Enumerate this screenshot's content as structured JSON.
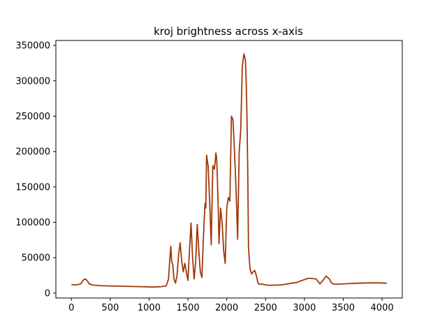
{
  "chart_data": {
    "type": "line",
    "title": "kroj brightness across x-axis",
    "xlabel": "",
    "ylabel": "",
    "xlim": [
      -200,
      4260
    ],
    "ylim": [
      -7000,
      357000
    ],
    "x_ticks": [
      0,
      500,
      1000,
      1500,
      2000,
      2500,
      3000,
      3500,
      4000
    ],
    "y_ticks": [
      0,
      50000,
      100000,
      150000,
      200000,
      250000,
      300000,
      350000
    ],
    "grid": false,
    "legend": "none",
    "series": [
      {
        "color": "#a0380a",
        "x": [
          0,
          60,
          120,
          150,
          175,
          200,
          230,
          270,
          350,
          500,
          700,
          900,
          1050,
          1150,
          1220,
          1250,
          1265,
          1280,
          1290,
          1305,
          1320,
          1340,
          1360,
          1380,
          1400,
          1420,
          1440,
          1460,
          1480,
          1500,
          1520,
          1540,
          1560,
          1580,
          1600,
          1620,
          1640,
          1660,
          1680,
          1700,
          1720,
          1730,
          1740,
          1760,
          1780,
          1800,
          1820,
          1840,
          1850,
          1860,
          1870,
          1880,
          1890,
          1900,
          1920,
          1940,
          1960,
          1980,
          2000,
          2020,
          2040,
          2060,
          2080,
          2100,
          2120,
          2140,
          2160,
          2180,
          2200,
          2220,
          2240,
          2250,
          2260,
          2270,
          2280,
          2290,
          2300,
          2320,
          2340,
          2360,
          2380,
          2400,
          2410,
          2420,
          2440,
          2460,
          2480,
          2500,
          2550,
          2700,
          2900,
          3050,
          3150,
          3200,
          3240,
          3280,
          3320,
          3350,
          3380,
          3420,
          3500,
          3700,
          3900,
          4060
        ],
        "y": [
          12000,
          11500,
          13000,
          18000,
          20000,
          18000,
          13000,
          11500,
          10500,
          10000,
          9500,
          9000,
          8500,
          9000,
          10000,
          20000,
          45000,
          66000,
          45000,
          40000,
          20000,
          14000,
          25000,
          55000,
          71000,
          45000,
          30000,
          42000,
          30000,
          18000,
          60000,
          99000,
          50000,
          20000,
          45000,
          97000,
          60000,
          30000,
          22000,
          80000,
          127000,
          120000,
          195000,
          180000,
          130000,
          68000,
          180000,
          175000,
          185000,
          198000,
          190000,
          160000,
          120000,
          70000,
          120000,
          100000,
          60000,
          42000,
          120000,
          135000,
          130000,
          250000,
          245000,
          200000,
          145000,
          76000,
          200000,
          230000,
          320000,
          338000,
          330000,
          300000,
          250000,
          175000,
          65000,
          48000,
          34000,
          27000,
          30000,
          32000,
          25000,
          15000,
          13000,
          12500,
          13000,
          12500,
          12000,
          11500,
          11000,
          11500,
          15000,
          21000,
          20000,
          13000,
          18000,
          24000,
          20000,
          14000,
          12500,
          12500,
          13000,
          14000,
          14500,
          14000
        ]
      }
    ]
  }
}
